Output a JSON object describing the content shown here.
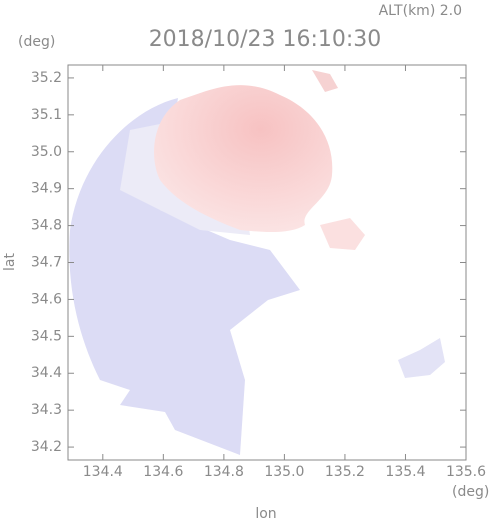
{
  "chart_data": {
    "type": "heatmap",
    "title": "2018/10/23 16:10:30",
    "subtitle": "ALT(km)  2.0",
    "x_label": "lon",
    "y_label": "lat",
    "x_unit": "(deg)",
    "y_unit": "(deg)",
    "xlim": [
      134.285,
      135.6
    ],
    "ylim": [
      34.165,
      35.235
    ],
    "xticks": [
      134.4,
      134.6,
      134.8,
      {
        "value": 135.0,
        "label": "135.0"
      },
      135.2,
      135.4,
      135.6
    ],
    "yticks": [
      34.2,
      34.3,
      34.4,
      34.5,
      34.6,
      34.7,
      34.8,
      34.9,
      {
        "value": 35.0,
        "label": "35.0"
      },
      35.1,
      35.2
    ],
    "axis_color": "#8a8a8a"
  }
}
